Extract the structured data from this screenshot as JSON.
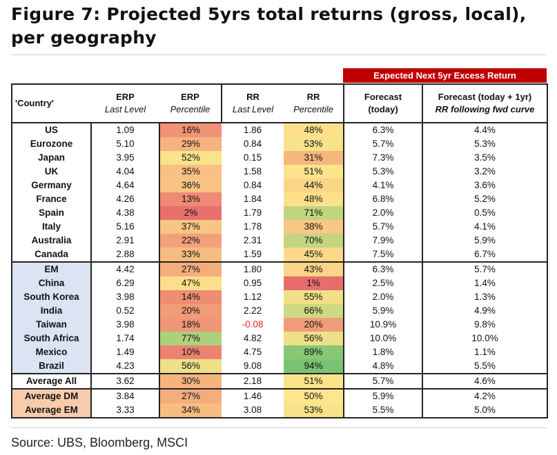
{
  "title": "Figure 7: Projected 5yrs total returns (gross, local), per geography",
  "banner": "Expected Next 5yr Excess Return",
  "headers": {
    "country": "'Country'",
    "erp_last": [
      "ERP",
      "Last Level"
    ],
    "erp_pct": [
      "ERP",
      "Percentile"
    ],
    "rr_last": [
      "RR",
      "Last Level"
    ],
    "rr_pct": [
      "RR",
      "Percentile"
    ],
    "forecast": [
      "Forecast",
      "(today)"
    ],
    "forecast1": [
      "Forecast (today + 1yr)",
      "RR following fwd curve"
    ]
  },
  "source": "Source: UBS, Bloomberg, MSCI",
  "chart_data": {
    "type": "table",
    "title": "Figure 7: Projected 5yrs total returns (gross, local), per geography",
    "columns": [
      "'Country'",
      "ERP Last Level",
      "ERP Percentile",
      "RR Last Level",
      "RR Percentile",
      "Forecast (today)",
      "Forecast (today + 1yr) RR following fwd curve"
    ],
    "rows": [
      {
        "group": "dm",
        "country": "US",
        "erp": "1.09",
        "erp_pct": "16%",
        "rr": "1.86",
        "rr_pct": "48%",
        "fc": "6.3%",
        "fc1": "4.4%"
      },
      {
        "group": "dm",
        "country": "Eurozone",
        "erp": "5.10",
        "erp_pct": "29%",
        "rr": "0.84",
        "rr_pct": "53%",
        "fc": "5.7%",
        "fc1": "5.3%"
      },
      {
        "group": "dm",
        "country": "Japan",
        "erp": "3.95",
        "erp_pct": "52%",
        "rr": "0.15",
        "rr_pct": "31%",
        "fc": "7.3%",
        "fc1": "3.5%"
      },
      {
        "group": "dm",
        "country": "UK",
        "erp": "4.04",
        "erp_pct": "35%",
        "rr": "1.58",
        "rr_pct": "51%",
        "fc": "5.3%",
        "fc1": "3.2%"
      },
      {
        "group": "dm",
        "country": "Germany",
        "erp": "4.64",
        "erp_pct": "36%",
        "rr": "0.84",
        "rr_pct": "44%",
        "fc": "4.1%",
        "fc1": "3.6%"
      },
      {
        "group": "dm",
        "country": "France",
        "erp": "4.26",
        "erp_pct": "13%",
        "rr": "1.84",
        "rr_pct": "48%",
        "fc": "6.8%",
        "fc1": "5.2%"
      },
      {
        "group": "dm",
        "country": "Spain",
        "erp": "4.38",
        "erp_pct": "2%",
        "rr": "1.79",
        "rr_pct": "71%",
        "fc": "2.0%",
        "fc1": "0.5%"
      },
      {
        "group": "dm",
        "country": "Italy",
        "erp": "5.16",
        "erp_pct": "37%",
        "rr": "1.78",
        "rr_pct": "38%",
        "fc": "5.7%",
        "fc1": "4.1%"
      },
      {
        "group": "dm",
        "country": "Australia",
        "erp": "2.91",
        "erp_pct": "22%",
        "rr": "2.31",
        "rr_pct": "70%",
        "fc": "7.9%",
        "fc1": "5.9%"
      },
      {
        "group": "dm",
        "country": "Canada",
        "erp": "2.88",
        "erp_pct": "33%",
        "rr": "1.59",
        "rr_pct": "45%",
        "fc": "7.5%",
        "fc1": "6.7%"
      },
      {
        "group": "em",
        "country": "EM",
        "erp": "4.42",
        "erp_pct": "27%",
        "rr": "1.80",
        "rr_pct": "43%",
        "fc": "6.3%",
        "fc1": "5.7%"
      },
      {
        "group": "em",
        "country": "China",
        "erp": "6.29",
        "erp_pct": "47%",
        "rr": "0.95",
        "rr_pct": "1%",
        "fc": "2.5%",
        "fc1": "1.4%"
      },
      {
        "group": "em",
        "country": "South Korea",
        "erp": "3.98",
        "erp_pct": "14%",
        "rr": "1.12",
        "rr_pct": "55%",
        "fc": "2.0%",
        "fc1": "1.3%"
      },
      {
        "group": "em",
        "country": "India",
        "erp": "0.52",
        "erp_pct": "20%",
        "rr": "2.22",
        "rr_pct": "66%",
        "fc": "5.9%",
        "fc1": "4.9%"
      },
      {
        "group": "em",
        "country": "Taiwan",
        "erp": "3.98",
        "erp_pct": "18%",
        "rr": "-0.08",
        "rr_pct": "20%",
        "fc": "10.9%",
        "fc1": "9.8%"
      },
      {
        "group": "em",
        "country": "South Africa",
        "erp": "1.74",
        "erp_pct": "77%",
        "rr": "4.82",
        "rr_pct": "56%",
        "fc": "10.0%",
        "fc1": "10.0%"
      },
      {
        "group": "em",
        "country": "Mexico",
        "erp": "1.49",
        "erp_pct": "10%",
        "rr": "4.75",
        "rr_pct": "89%",
        "fc": "1.8%",
        "fc1": "1.1%"
      },
      {
        "group": "em",
        "country": "Brazil",
        "erp": "4.23",
        "erp_pct": "56%",
        "rr": "9.08",
        "rr_pct": "94%",
        "fc": "4.8%",
        "fc1": "5.5%"
      },
      {
        "group": "avg",
        "country": "Average All",
        "erp": "3.62",
        "erp_pct": "30%",
        "rr": "2.18",
        "rr_pct": "51%",
        "fc": "5.7%",
        "fc1": "4.6%"
      },
      {
        "group": "avgs",
        "country": "Average DM",
        "erp": "3.84",
        "erp_pct": "27%",
        "rr": "1.46",
        "rr_pct": "50%",
        "fc": "5.9%",
        "fc1": "4.2%"
      },
      {
        "group": "avgs",
        "country": "Average EM",
        "erp": "3.33",
        "erp_pct": "34%",
        "rr": "3.08",
        "rr_pct": "53%",
        "fc": "5.5%",
        "fc1": "5.0%"
      }
    ]
  }
}
